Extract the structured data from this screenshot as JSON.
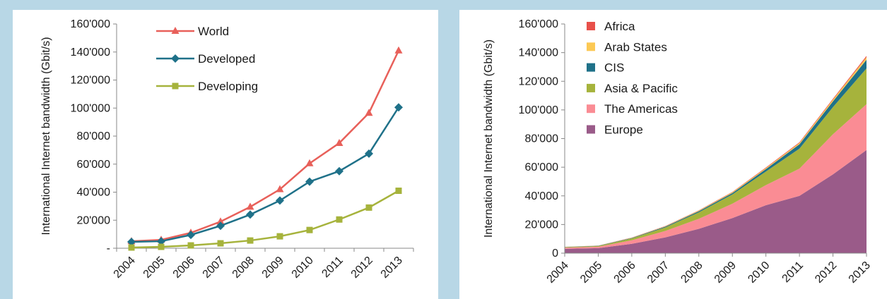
{
  "chart_data": [
    {
      "type": "line",
      "title": "",
      "ylabel": "International Internet bandwidth (Gbit/s)",
      "xlabel": "",
      "categories": [
        "2004",
        "2005",
        "2006",
        "2007",
        "2008",
        "2009",
        "2010",
        "2011",
        "2012",
        "2013"
      ],
      "ylim": [
        0,
        160000
      ],
      "yticks": [
        "-",
        "20'000",
        "40'000",
        "60'000",
        "80'000",
        "100'000",
        "120'000",
        "140'000",
        "160'000"
      ],
      "legend_position": "top-center",
      "series": [
        {
          "name": "World",
          "color": "#e8605a",
          "marker": "triangle",
          "values": [
            5000,
            6000,
            11000,
            19000,
            29500,
            42000,
            60500,
            75000,
            96500,
            141000
          ]
        },
        {
          "name": "Developed",
          "color": "#1f7189",
          "marker": "diamond",
          "values": [
            4500,
            5000,
            9500,
            16000,
            24000,
            34000,
            47500,
            55000,
            67500,
            100500
          ]
        },
        {
          "name": "Developing",
          "color": "#a6b33c",
          "marker": "square",
          "values": [
            500,
            1000,
            2000,
            3500,
            5500,
            8500,
            13000,
            20500,
            29000,
            41000
          ]
        }
      ]
    },
    {
      "type": "area",
      "stacked": true,
      "title": "",
      "ylabel": "International Internet bandwidth (Gbit/s)",
      "xlabel": "",
      "categories": [
        "2004",
        "2005",
        "2006",
        "2007",
        "2008",
        "2009",
        "2010",
        "2011",
        "2012",
        "2013"
      ],
      "ylim": [
        0,
        160000
      ],
      "yticks": [
        "0",
        "20'000",
        "40'000",
        "60'000",
        "80'000",
        "100'000",
        "120'000",
        "140'000",
        "160'000"
      ],
      "legend_position": "top-left",
      "series": [
        {
          "name": "Europe",
          "color": "#9a5b89",
          "values": [
            3000,
            3500,
            6500,
            11000,
            17000,
            24500,
            33500,
            40000,
            55000,
            72000
          ]
        },
        {
          "name": "The Americas",
          "color": "#fa8c94",
          "values": [
            800,
            1000,
            2500,
            4500,
            7000,
            10000,
            14000,
            19000,
            28000,
            32000
          ]
        },
        {
          "name": "Asia & Pacific",
          "color": "#a6b33c",
          "values": [
            400,
            500,
            1300,
            2500,
            4500,
            6500,
            9500,
            14000,
            19000,
            25000
          ]
        },
        {
          "name": "CIS",
          "color": "#1f7189",
          "values": [
            100,
            150,
            300,
            500,
            800,
            1000,
            1700,
            3000,
            4000,
            6000
          ]
        },
        {
          "name": "Arab States",
          "color": "#fcc954",
          "values": [
            100,
            100,
            200,
            300,
            400,
            500,
            700,
            900,
            1200,
            1800
          ]
        },
        {
          "name": "Africa",
          "color": "#e8504a",
          "values": [
            50,
            50,
            100,
            150,
            200,
            300,
            400,
            500,
            600,
            900
          ]
        }
      ]
    }
  ]
}
